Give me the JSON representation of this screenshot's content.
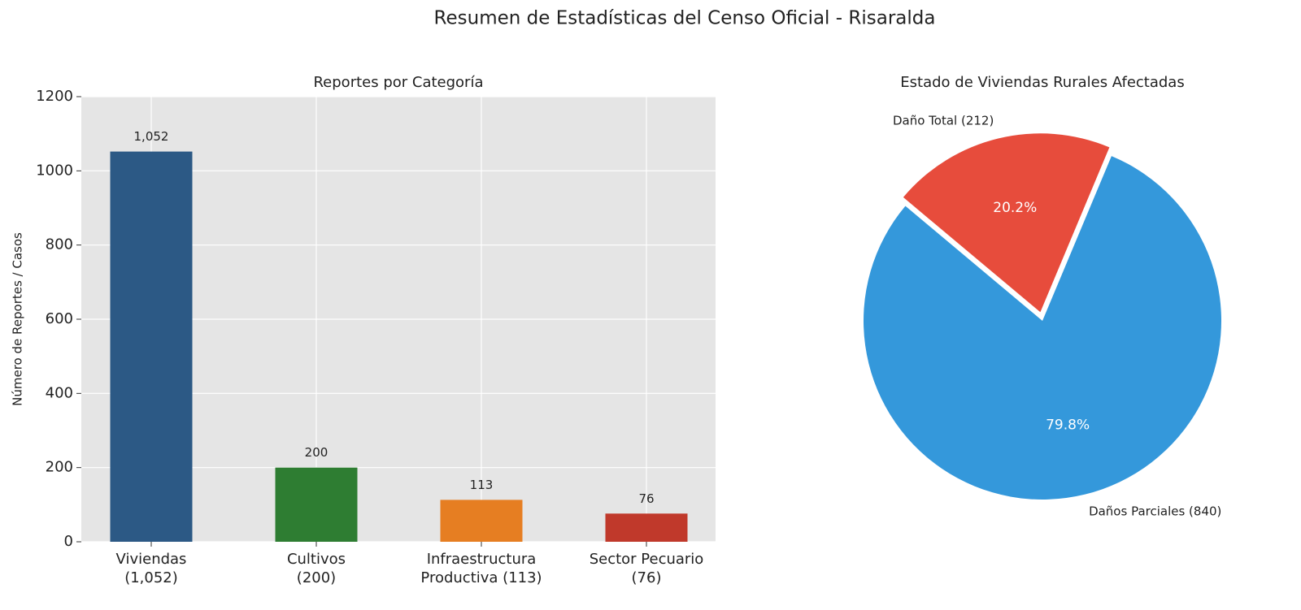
{
  "title": "Resumen de Estadísticas del Censo Oficial - Risaralda",
  "chart_data": [
    {
      "type": "bar",
      "title": "Reportes por Categoría",
      "ylabel": "Número de Reportes / Casos",
      "categories": [
        "Viviendas\n(1,052)",
        "Cultivos\n(200)",
        "Infraestructura\nProductiva (113)",
        "Sector Pecuario\n(76)"
      ],
      "values": [
        1052,
        200,
        113,
        76
      ],
      "value_labels": [
        "1,052",
        "200",
        "113",
        "76"
      ],
      "colors": [
        "#2c5985",
        "#2e7d32",
        "#e67e22",
        "#c0392b"
      ],
      "ylim": [
        0,
        1200
      ],
      "yticks": [
        0,
        200,
        400,
        600,
        800,
        1000,
        1200
      ],
      "grid": true
    },
    {
      "type": "pie",
      "title": "Estado de Viviendas Rurales Afectadas",
      "categories": [
        "Daño Total (212)",
        "Daños Parciales (840)"
      ],
      "values": [
        20.2,
        79.8
      ],
      "value_labels": [
        "20.2%",
        "79.8%"
      ],
      "colors": [
        "#e74c3c",
        "#3498db"
      ]
    }
  ]
}
